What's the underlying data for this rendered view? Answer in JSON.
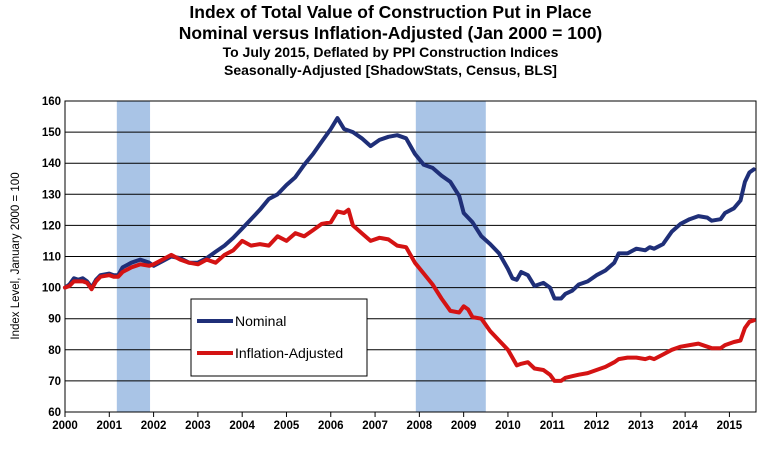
{
  "title": "Index of Total Value of Construction Put in Place",
  "subtitle": "Nominal versus Inflation-Adjusted  (Jan 2000 = 100)",
  "subtitle2": "To July 2015, Deflated by PPI Construction Indices",
  "subtitle3": "Seasonally-Adjusted [ShadowStats, Census, BLS]",
  "colors": {
    "nominal": "#1f2f78",
    "inflation_adjusted": "#d41313",
    "recession": "#a9c4e6",
    "grid": "#000000"
  },
  "chart_data": {
    "type": "line",
    "title": "Index of Total Value of Construction Put in Place",
    "xlabel": "",
    "ylabel": "Index Level, January 2000 = 100",
    "xlim": [
      2000,
      2015.6
    ],
    "ylim": [
      60,
      160
    ],
    "yticks": [
      60,
      70,
      80,
      90,
      100,
      110,
      120,
      130,
      140,
      150,
      160
    ],
    "xticks": [
      "2000",
      "2001",
      "2002",
      "2003",
      "2004",
      "2005",
      "2006",
      "2007",
      "2008",
      "2009",
      "2010",
      "2011",
      "2012",
      "2013",
      "2014",
      "2015"
    ],
    "grid": true,
    "legend": "lower-left",
    "recessions": [
      [
        2001.17,
        2001.92
      ],
      [
        2007.92,
        2009.5
      ]
    ],
    "series": [
      {
        "name": "Nominal",
        "points": [
          [
            2000.0,
            100
          ],
          [
            2000.1,
            101
          ],
          [
            2000.2,
            103
          ],
          [
            2000.3,
            102.5
          ],
          [
            2000.4,
            103
          ],
          [
            2000.5,
            102
          ],
          [
            2000.6,
            100
          ],
          [
            2000.7,
            102.5
          ],
          [
            2000.8,
            104
          ],
          [
            2001.0,
            104.5
          ],
          [
            2001.1,
            104
          ],
          [
            2001.2,
            104
          ],
          [
            2001.3,
            106.5
          ],
          [
            2001.5,
            108
          ],
          [
            2001.7,
            109
          ],
          [
            2001.9,
            108
          ],
          [
            2002.0,
            107
          ],
          [
            2002.2,
            108.5
          ],
          [
            2002.4,
            110
          ],
          [
            2002.6,
            109.5
          ],
          [
            2002.8,
            108
          ],
          [
            2003.0,
            108
          ],
          [
            2003.2,
            109.5
          ],
          [
            2003.4,
            111.5
          ],
          [
            2003.6,
            113.5
          ],
          [
            2003.8,
            116
          ],
          [
            2004.0,
            119
          ],
          [
            2004.2,
            122
          ],
          [
            2004.4,
            125
          ],
          [
            2004.6,
            128.5
          ],
          [
            2004.8,
            130
          ],
          [
            2005.0,
            133
          ],
          [
            2005.2,
            135.5
          ],
          [
            2005.4,
            139.5
          ],
          [
            2005.6,
            143
          ],
          [
            2005.8,
            147
          ],
          [
            2006.0,
            151
          ],
          [
            2006.15,
            154.5
          ],
          [
            2006.3,
            151
          ],
          [
            2006.5,
            150
          ],
          [
            2006.7,
            148
          ],
          [
            2006.9,
            145.5
          ],
          [
            2007.1,
            147.5
          ],
          [
            2007.3,
            148.5
          ],
          [
            2007.5,
            149
          ],
          [
            2007.7,
            148
          ],
          [
            2007.9,
            143
          ],
          [
            2008.1,
            139.5
          ],
          [
            2008.3,
            138.5
          ],
          [
            2008.5,
            136
          ],
          [
            2008.7,
            134
          ],
          [
            2008.9,
            129.5
          ],
          [
            2009.0,
            124
          ],
          [
            2009.2,
            121
          ],
          [
            2009.4,
            116.5
          ],
          [
            2009.6,
            114
          ],
          [
            2009.8,
            111
          ],
          [
            2010.0,
            106
          ],
          [
            2010.1,
            103
          ],
          [
            2010.2,
            102.5
          ],
          [
            2010.3,
            105
          ],
          [
            2010.45,
            104
          ],
          [
            2010.6,
            100.5
          ],
          [
            2010.8,
            101.5
          ],
          [
            2010.95,
            100
          ],
          [
            2011.05,
            96.5
          ],
          [
            2011.2,
            96.5
          ],
          [
            2011.3,
            98
          ],
          [
            2011.45,
            99
          ],
          [
            2011.6,
            101
          ],
          [
            2011.8,
            102
          ],
          [
            2012.0,
            104
          ],
          [
            2012.2,
            105.5
          ],
          [
            2012.4,
            108
          ],
          [
            2012.5,
            111
          ],
          [
            2012.7,
            111
          ],
          [
            2012.9,
            112.5
          ],
          [
            2013.1,
            112
          ],
          [
            2013.2,
            113
          ],
          [
            2013.3,
            112.5
          ],
          [
            2013.5,
            114
          ],
          [
            2013.7,
            118
          ],
          [
            2013.9,
            120.5
          ],
          [
            2014.1,
            122
          ],
          [
            2014.3,
            123
          ],
          [
            2014.5,
            122.5
          ],
          [
            2014.6,
            121.5
          ],
          [
            2014.8,
            122
          ],
          [
            2014.9,
            124
          ],
          [
            2015.1,
            125.5
          ],
          [
            2015.25,
            128
          ],
          [
            2015.35,
            134
          ],
          [
            2015.45,
            137
          ],
          [
            2015.55,
            138
          ]
        ]
      },
      {
        "name": "Inflation-Adjusted",
        "points": [
          [
            2000.0,
            100
          ],
          [
            2000.1,
            100.5
          ],
          [
            2000.2,
            102
          ],
          [
            2000.3,
            102
          ],
          [
            2000.4,
            102
          ],
          [
            2000.5,
            101.5
          ],
          [
            2000.6,
            99.5
          ],
          [
            2000.7,
            102
          ],
          [
            2000.8,
            103.5
          ],
          [
            2001.0,
            104
          ],
          [
            2001.1,
            103.5
          ],
          [
            2001.2,
            103.5
          ],
          [
            2001.3,
            105
          ],
          [
            2001.5,
            106.5
          ],
          [
            2001.7,
            107.5
          ],
          [
            2001.9,
            107
          ],
          [
            2002.0,
            107.5
          ],
          [
            2002.2,
            109
          ],
          [
            2002.4,
            110.5
          ],
          [
            2002.6,
            109
          ],
          [
            2002.8,
            108
          ],
          [
            2003.0,
            107.5
          ],
          [
            2003.2,
            109
          ],
          [
            2003.4,
            108
          ],
          [
            2003.6,
            110.5
          ],
          [
            2003.8,
            112
          ],
          [
            2004.0,
            115
          ],
          [
            2004.2,
            113.5
          ],
          [
            2004.4,
            114
          ],
          [
            2004.6,
            113.5
          ],
          [
            2004.8,
            116.5
          ],
          [
            2005.0,
            115
          ],
          [
            2005.2,
            117.5
          ],
          [
            2005.4,
            116.5
          ],
          [
            2005.6,
            118.5
          ],
          [
            2005.8,
            120.5
          ],
          [
            2006.0,
            121
          ],
          [
            2006.15,
            124.5
          ],
          [
            2006.3,
            124
          ],
          [
            2006.4,
            125
          ],
          [
            2006.5,
            120
          ],
          [
            2006.7,
            117.5
          ],
          [
            2006.9,
            115
          ],
          [
            2007.1,
            116
          ],
          [
            2007.3,
            115.5
          ],
          [
            2007.5,
            113.5
          ],
          [
            2007.7,
            113
          ],
          [
            2007.9,
            108
          ],
          [
            2008.1,
            104.5
          ],
          [
            2008.3,
            101
          ],
          [
            2008.5,
            96.5
          ],
          [
            2008.7,
            92.5
          ],
          [
            2008.9,
            92
          ],
          [
            2009.0,
            94
          ],
          [
            2009.1,
            93
          ],
          [
            2009.2,
            90.5
          ],
          [
            2009.4,
            90
          ],
          [
            2009.6,
            86
          ],
          [
            2009.8,
            83
          ],
          [
            2010.0,
            80
          ],
          [
            2010.1,
            77.5
          ],
          [
            2010.2,
            75
          ],
          [
            2010.3,
            75.5
          ],
          [
            2010.45,
            76
          ],
          [
            2010.6,
            74
          ],
          [
            2010.8,
            73.5
          ],
          [
            2010.95,
            72
          ],
          [
            2011.05,
            70
          ],
          [
            2011.2,
            70
          ],
          [
            2011.3,
            71
          ],
          [
            2011.45,
            71.5
          ],
          [
            2011.6,
            72
          ],
          [
            2011.8,
            72.5
          ],
          [
            2012.0,
            73.5
          ],
          [
            2012.2,
            74.5
          ],
          [
            2012.4,
            76
          ],
          [
            2012.5,
            77
          ],
          [
            2012.7,
            77.5
          ],
          [
            2012.9,
            77.5
          ],
          [
            2013.1,
            77
          ],
          [
            2013.2,
            77.5
          ],
          [
            2013.3,
            77
          ],
          [
            2013.5,
            78.5
          ],
          [
            2013.7,
            80
          ],
          [
            2013.9,
            81
          ],
          [
            2014.1,
            81.5
          ],
          [
            2014.3,
            82
          ],
          [
            2014.5,
            81
          ],
          [
            2014.6,
            80.5
          ],
          [
            2014.8,
            80.5
          ],
          [
            2014.9,
            81.5
          ],
          [
            2015.1,
            82.5
          ],
          [
            2015.25,
            83
          ],
          [
            2015.35,
            87
          ],
          [
            2015.45,
            89
          ],
          [
            2015.55,
            89.5
          ]
        ]
      }
    ]
  }
}
